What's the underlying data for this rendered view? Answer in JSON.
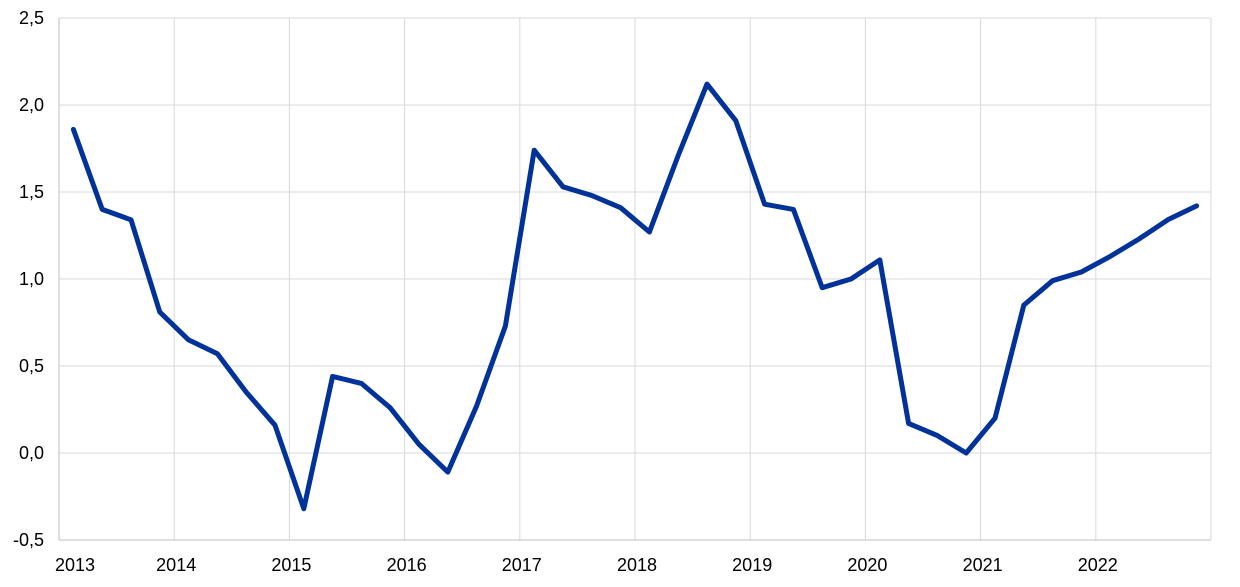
{
  "chart_data": {
    "type": "line",
    "title": "",
    "xlabel": "",
    "ylabel": "",
    "ylim": [
      -0.5,
      2.5
    ],
    "y_ticks": [
      -0.5,
      0.0,
      0.5,
      1.0,
      1.5,
      2.0,
      2.5
    ],
    "y_tick_labels": [
      "-0,5",
      "0,0",
      "0,5",
      "1,0",
      "1,5",
      "2,0",
      "2,5"
    ],
    "xlim": [
      2013,
      2023
    ],
    "x_ticks": [
      2013,
      2014,
      2015,
      2016,
      2017,
      2018,
      2019,
      2020,
      2021,
      2022
    ],
    "x_tick_labels": [
      "2013",
      "2014",
      "2015",
      "2016",
      "2017",
      "2018",
      "2019",
      "2020",
      "2021",
      "2022"
    ],
    "grid": true,
    "line_color": "#003299",
    "grid_color": "#d9d9d9",
    "series": [
      {
        "x": [
          2013.125,
          2013.375,
          2013.625,
          2013.875,
          2014.125,
          2014.375,
          2014.625,
          2014.875,
          2015.125,
          2015.375,
          2015.625,
          2015.875,
          2016.125,
          2016.375,
          2016.625,
          2016.875,
          2017.125,
          2017.375,
          2017.625,
          2017.875,
          2018.125,
          2018.375,
          2018.625,
          2018.875,
          2019.125,
          2019.375,
          2019.625,
          2019.875,
          2020.125,
          2020.375,
          2020.625,
          2020.875,
          2021.125,
          2021.375,
          2021.625,
          2021.875,
          2022.125,
          2022.375,
          2022.625,
          2022.875
        ],
        "values": [
          1.86,
          1.4,
          1.34,
          0.81,
          0.65,
          0.57,
          0.35,
          0.16,
          -0.32,
          0.44,
          0.4,
          0.26,
          0.05,
          -0.11,
          0.27,
          0.73,
          1.74,
          1.53,
          1.48,
          1.41,
          1.27,
          1.71,
          2.12,
          1.91,
          1.43,
          1.4,
          0.95,
          1.0,
          1.11,
          0.17,
          0.1,
          0.0,
          0.2,
          0.85,
          0.99,
          1.04,
          1.13,
          1.23,
          1.34,
          1.42
        ]
      }
    ]
  }
}
